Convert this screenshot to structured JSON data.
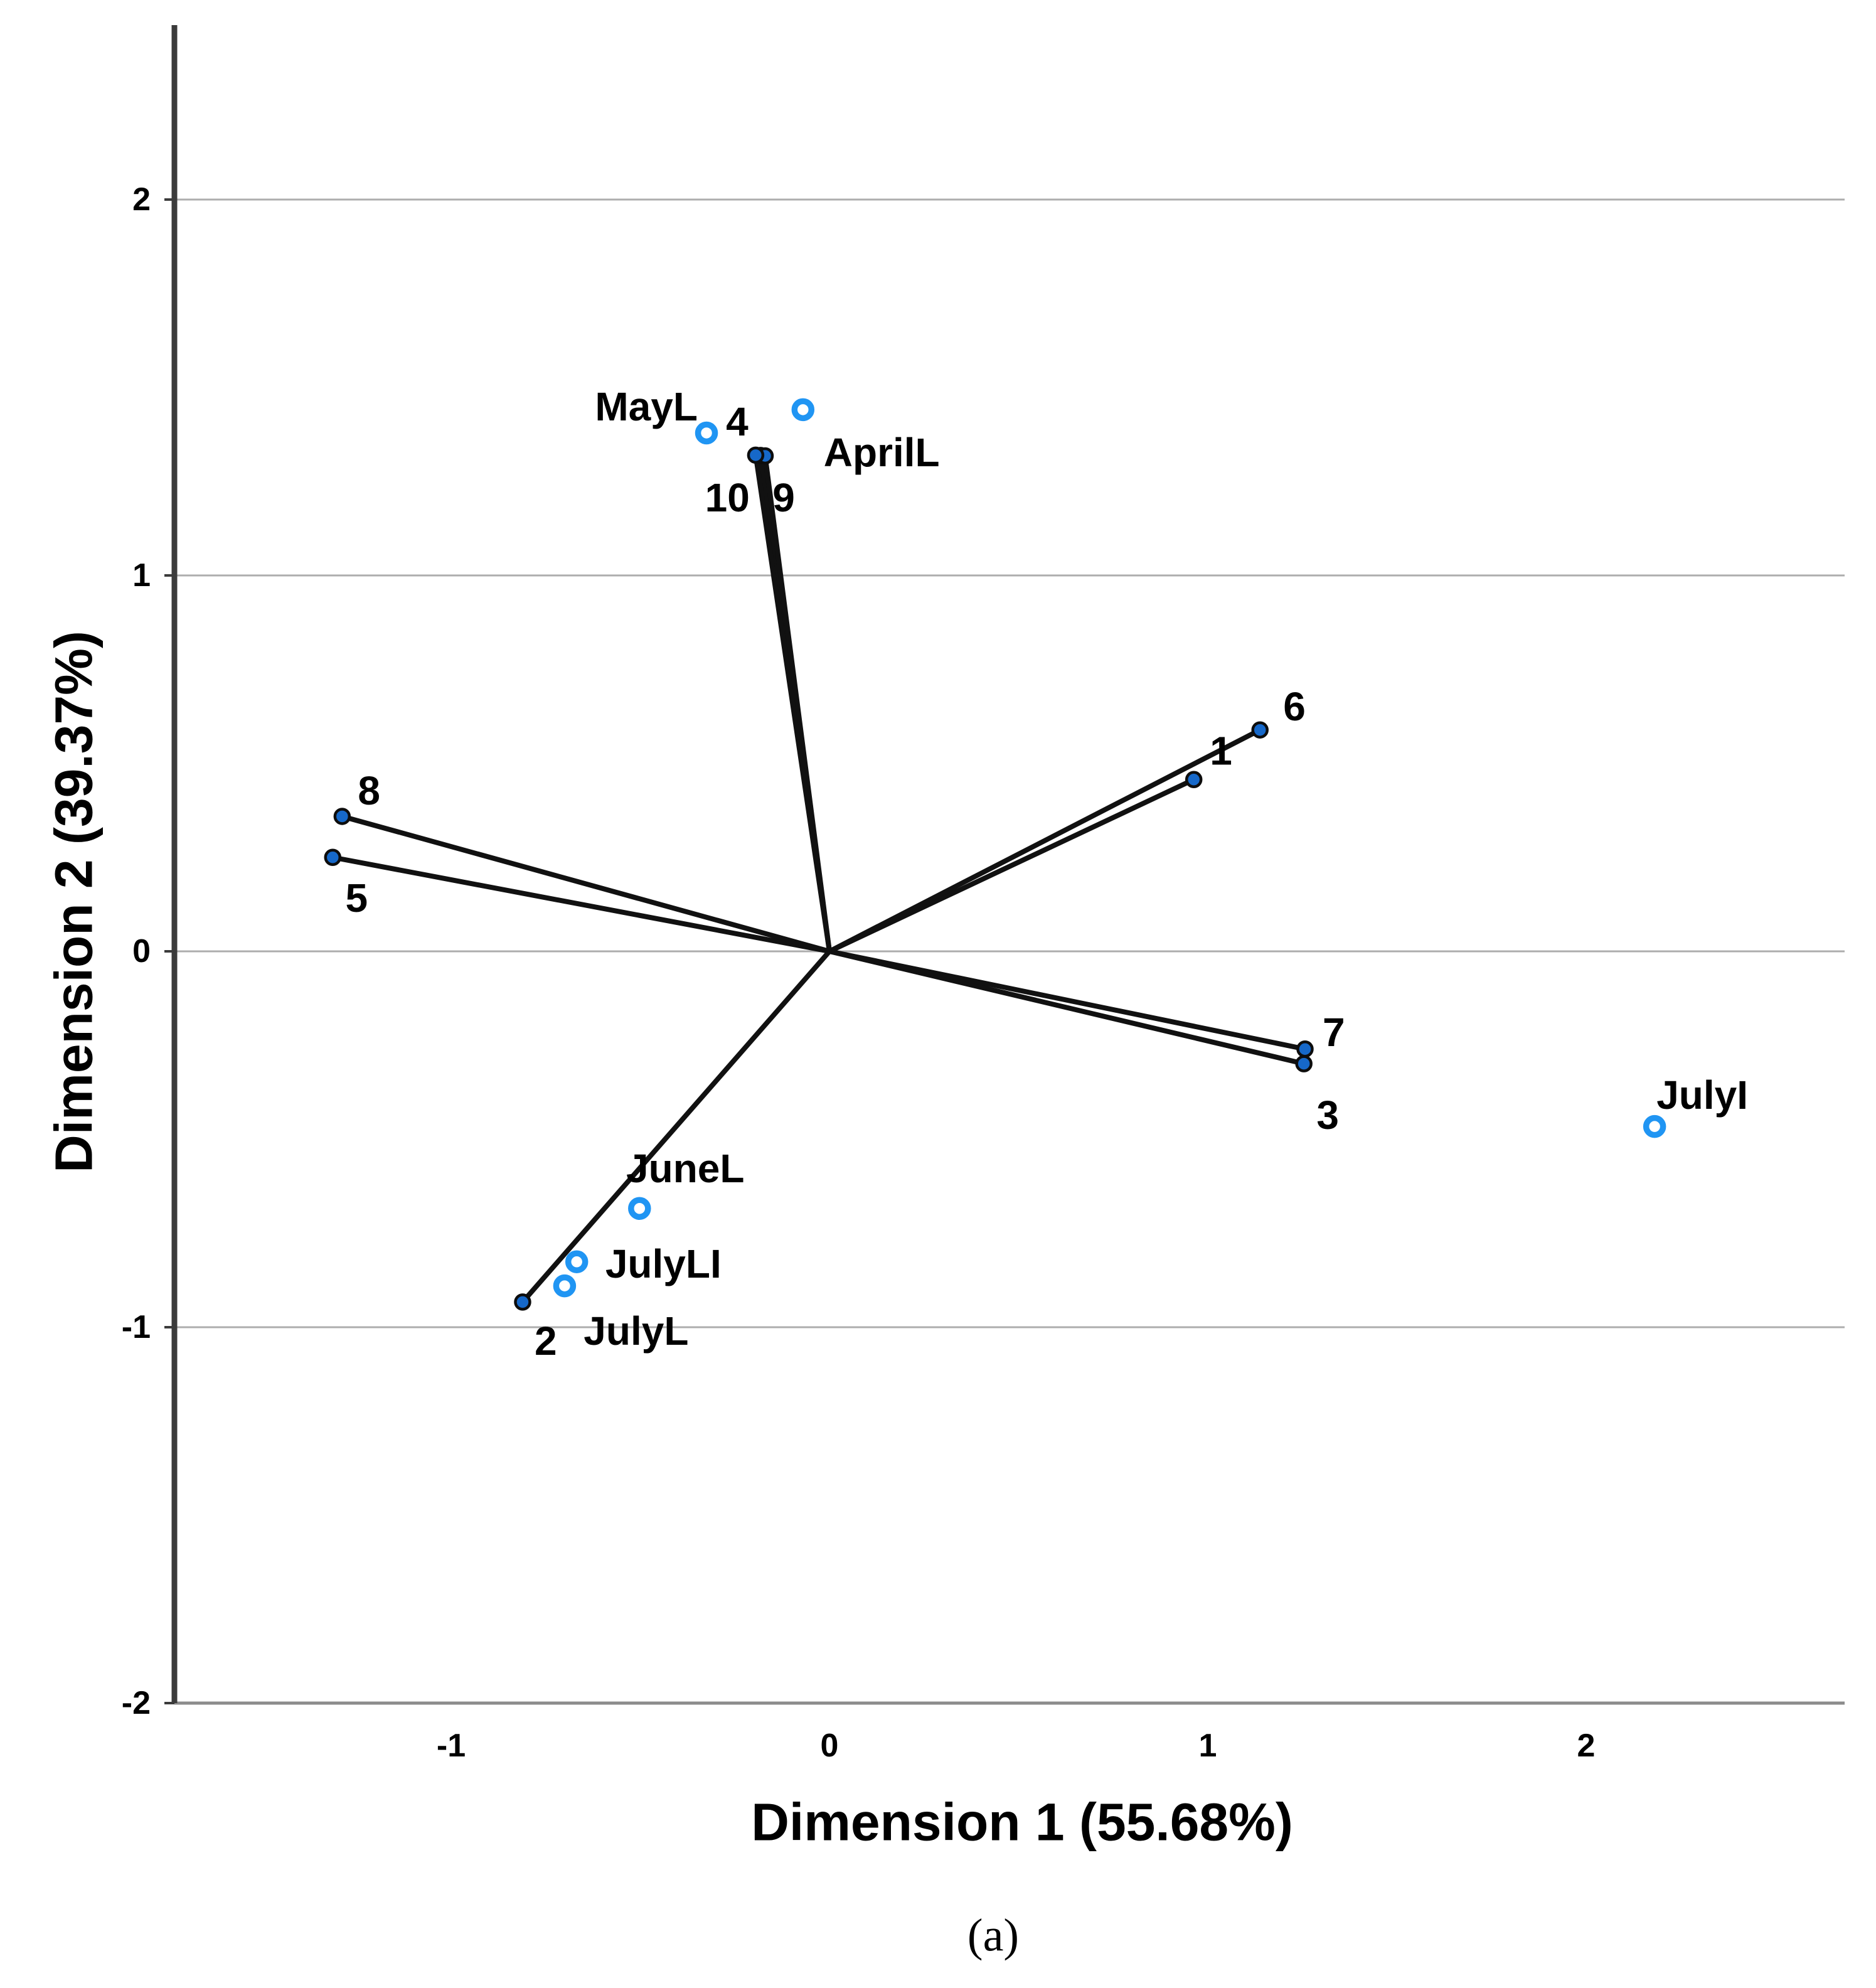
{
  "figure": {
    "caption": "(a)"
  },
  "chart_data": {
    "type": "scatter",
    "subtype": "biplot-with-vectors",
    "title": "",
    "xlabel": "Dimension 1 (55.68%)",
    "ylabel": "Dimension 2 (39.37%)",
    "xlim": [
      -1.73,
      2.68
    ],
    "ylim": [
      -2.0,
      2.42
    ],
    "x_ticks": [
      -1,
      0,
      1,
      2
    ],
    "y_ticks": [
      2,
      1,
      0,
      -1,
      -2
    ],
    "grid": "horizontal-only",
    "legend": "none",
    "vectors": [
      {
        "label": "1",
        "x": 0.963,
        "y": 0.457,
        "label_x": 1.035,
        "label_y": 0.533
      },
      {
        "label": "2",
        "x": -0.811,
        "y": -0.933,
        "label_x": -0.75,
        "label_y": -1.037
      },
      {
        "label": "3",
        "x": 1.254,
        "y": -0.299,
        "label_x": 1.317,
        "label_y": -0.436
      },
      {
        "label": "4",
        "x": -0.182,
        "y": 1.319,
        "label_x": -0.244,
        "label_y": 1.409
      },
      {
        "label": "5",
        "x": -1.313,
        "y": 0.25,
        "label_x": -1.25,
        "label_y": 0.142
      },
      {
        "label": "6",
        "x": 1.138,
        "y": 0.589,
        "label_x": 1.229,
        "label_y": 0.651
      },
      {
        "label": "7",
        "x": 1.257,
        "y": -0.26,
        "label_x": 1.333,
        "label_y": -0.215
      },
      {
        "label": "8",
        "x": -1.288,
        "y": 0.359,
        "label_x": -1.217,
        "label_y": 0.427
      },
      {
        "label": "9",
        "x": -0.17,
        "y": 1.318,
        "label_x": -0.121,
        "label_y": 1.207
      },
      {
        "label": "10",
        "x": -0.195,
        "y": 1.32,
        "label_x": -0.27,
        "label_y": 1.207
      }
    ],
    "points": [
      {
        "label": "AprilL",
        "x": -0.07,
        "y": 1.441,
        "label_x": 0.138,
        "label_y": 1.327
      },
      {
        "label": "MayL",
        "x": -0.325,
        "y": 1.379,
        "label_x": -0.484,
        "label_y": 1.449
      },
      {
        "label": "JuneL",
        "x": -0.502,
        "y": -0.684,
        "label_x": -0.381,
        "label_y": -0.578
      },
      {
        "label": "JulyL",
        "x": -0.7,
        "y": -0.89,
        "label_x": -0.511,
        "label_y": -1.01
      },
      {
        "label": "JulyLI",
        "x": -0.668,
        "y": -0.826,
        "label_x": -0.439,
        "label_y": -0.831
      },
      {
        "label": "JulyI",
        "x": 2.181,
        "y": -0.466,
        "label_x": 2.307,
        "label_y": -0.382
      }
    ],
    "colors": {
      "vector_line": "#111111",
      "vector_dot_fill": "#1668c9",
      "vector_dot_stroke": "#0d0d0d",
      "point_ring": "#2095f3",
      "point_fill": "#ffffff",
      "grid": "#adadad",
      "baseline": "#8c8c8c",
      "axis": "#3b3b3b",
      "text": "#000000",
      "background": "#ffffff"
    }
  }
}
